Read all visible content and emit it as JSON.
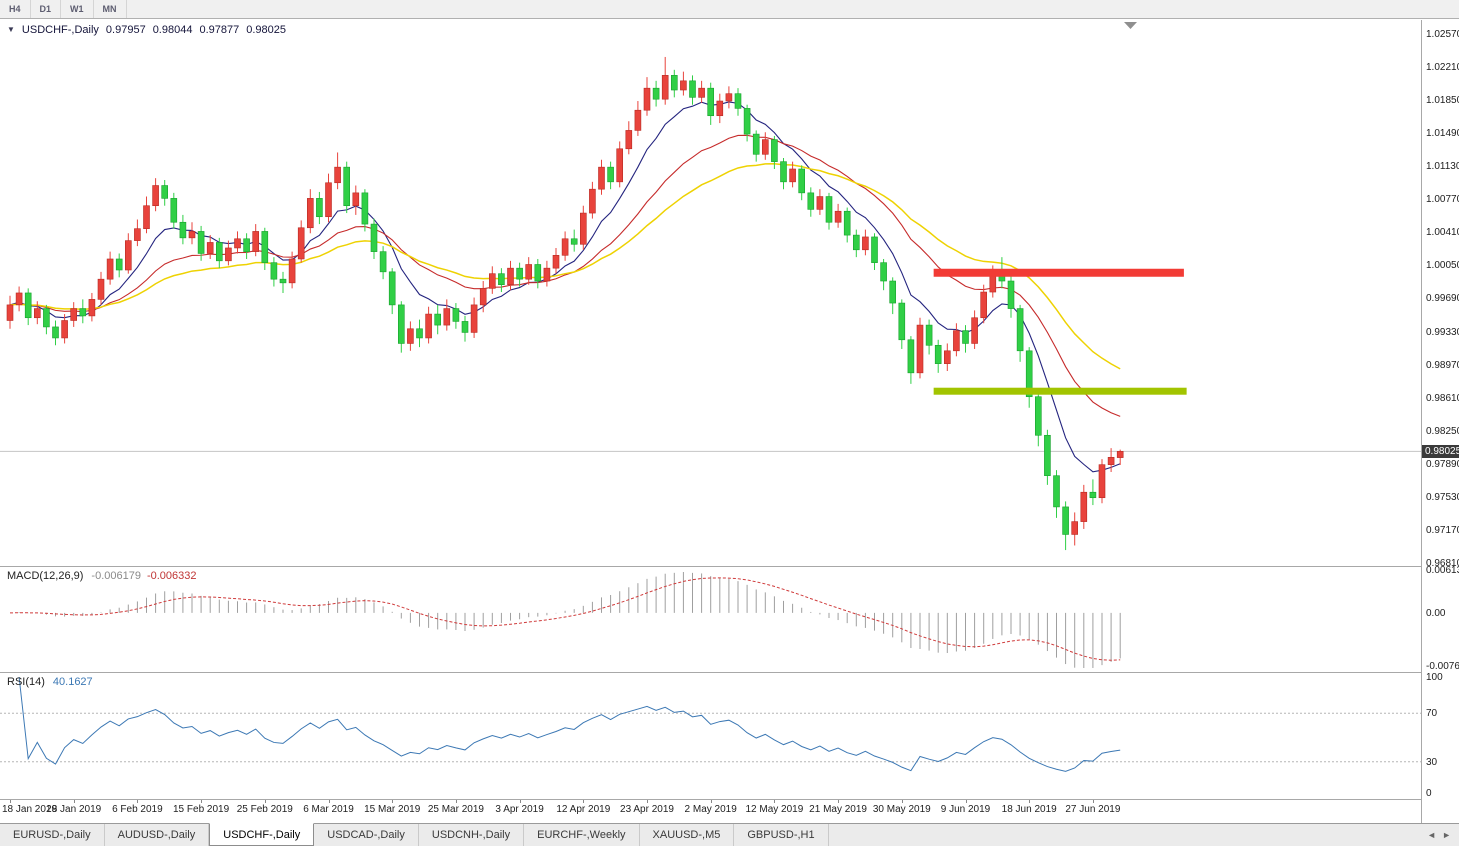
{
  "toolbar": {
    "timeframes": [
      "H4",
      "D1",
      "W1",
      "MN"
    ]
  },
  "chart_header": {
    "collapse_icon": "▼",
    "symbol": "USDCHF-,Daily",
    "open": "0.97957",
    "high": "0.98044",
    "low": "0.97877",
    "close": "0.98025"
  },
  "price_scale": {
    "labels": [
      "1.02570",
      "1.02210",
      "1.01850",
      "1.01490",
      "1.01130",
      "1.00770",
      "1.00410",
      "1.00050",
      "0.99690",
      "0.99330",
      "0.98970",
      "0.98610",
      "0.98250",
      "0.97890",
      "0.97530",
      "0.97170",
      "0.96810"
    ],
    "current_price": "0.98025"
  },
  "macd_panel": {
    "label": "MACD(12,26,9)",
    "main_value": "-0.006179",
    "signal_value": "-0.006332",
    "scale_labels": [
      "0.00613",
      "0.00",
      "-0.00761"
    ]
  },
  "rsi_panel": {
    "label": "RSI(14)",
    "value": "40.1627",
    "scale_labels": [
      "100",
      "70",
      "30",
      "0"
    ],
    "levels": [
      70,
      30
    ]
  },
  "time_axis": {
    "step": 7,
    "labels": [
      "18 Jan 2019",
      "28 Jan 2019",
      "6 Feb 2019",
      "15 Feb 2019",
      "25 Feb 2019",
      "6 Mar 2019",
      "15 Mar 2019",
      "25 Mar 2019",
      "3 Apr 2019",
      "12 Apr 2019",
      "23 Apr 2019",
      "2 May 2019",
      "12 May 2019",
      "21 May 2019",
      "30 May 2019",
      "9 Jun 2019",
      "18 Jun 2019",
      "27 Jun 2019"
    ]
  },
  "tab_bar": {
    "tabs": [
      {
        "label": "EURUSD-,Daily",
        "active": false
      },
      {
        "label": "AUDUSD-,Daily",
        "active": false
      },
      {
        "label": "USDCHF-,Daily",
        "active": true
      },
      {
        "label": "USDCAD-,Daily",
        "active": false
      },
      {
        "label": "USDCNH-,Daily",
        "active": false
      },
      {
        "label": "EURCHF-,Weekly",
        "active": false
      },
      {
        "label": "XAUUSD-,M5",
        "active": false
      },
      {
        "label": "GBPUSD-,H1",
        "active": false
      }
    ],
    "scroll_left": "◄",
    "scroll_right": "►"
  },
  "colors": {
    "bull": "#e8433c",
    "bear": "#30cf46",
    "bull_border": "#b72a22",
    "bear_border": "#17a12c",
    "ma_fast": "#24247f",
    "ma_mid": "#c62b2b",
    "ma_slow": "#eed202",
    "macd_hist": "#9f9f9f",
    "macd_signal": "#cf3a3a",
    "rsi_line": "#3c78b4",
    "resistance": "#f23b35",
    "support": "#a2c400",
    "price_line": "#c4c4c4",
    "badge_bg": "#3a3a3a"
  },
  "chart_data": {
    "type": "candlestick",
    "symbol": "USDCHF",
    "timeframe": "Daily",
    "title": "USDCHF-,Daily 0.97957 0.98044 0.97877 0.98025",
    "y_axis": {
      "min": 0.9681,
      "max": 1.0257,
      "tick": 0.0036
    },
    "x_labels": [
      "18 Jan 2019",
      "28 Jan 2019",
      "6 Feb 2019",
      "15 Feb 2019",
      "25 Feb 2019",
      "6 Mar 2019",
      "15 Mar 2019",
      "25 Mar 2019",
      "3 Apr 2019",
      "12 Apr 2019",
      "23 Apr 2019",
      "2 May 2019",
      "12 May 2019",
      "21 May 2019",
      "30 May 2019",
      "9 Jun 2019",
      "18 Jun 2019",
      "27 Jun 2019"
    ],
    "x_label_step": 7,
    "moving_averages": [
      {
        "name": "fast",
        "type": "EMA",
        "period": 8,
        "color_key": "ma_fast",
        "width": 1.1
      },
      {
        "name": "mid",
        "type": "EMA",
        "period": 20,
        "color_key": "ma_mid",
        "width": 1.1
      },
      {
        "name": "slow",
        "type": "EMA",
        "period": 34,
        "color_key": "ma_slow",
        "width": 1.5
      }
    ],
    "horizontal_levels": [
      {
        "name": "resistance",
        "price": 0.9997,
        "from_index": 101.5,
        "to_index": 129,
        "color_key": "resistance",
        "thickness": 8
      },
      {
        "name": "support",
        "price": 0.9868,
        "from_index": 101.5,
        "to_index": 129.3,
        "color_key": "support",
        "thickness": 7
      }
    ],
    "macd": {
      "fast": 12,
      "slow": 26,
      "signal": 9
    },
    "rsi": {
      "period": 14
    },
    "ohlc": [
      [
        0.9945,
        0.9972,
        0.9936,
        0.9962
      ],
      [
        0.9962,
        0.9982,
        0.9955,
        0.9975
      ],
      [
        0.9975,
        0.998,
        0.994,
        0.9948
      ],
      [
        0.9948,
        0.9966,
        0.9941,
        0.9958
      ],
      [
        0.9958,
        0.9962,
        0.993,
        0.9938
      ],
      [
        0.9938,
        0.9945,
        0.9918,
        0.9926
      ],
      [
        0.9926,
        0.9952,
        0.992,
        0.9945
      ],
      [
        0.9945,
        0.9965,
        0.9938,
        0.9958
      ],
      [
        0.9958,
        0.9968,
        0.9942,
        0.995
      ],
      [
        0.995,
        0.9975,
        0.9944,
        0.9968
      ],
      [
        0.9968,
        0.9998,
        0.9962,
        0.999
      ],
      [
        0.999,
        1.002,
        0.9984,
        1.0012
      ],
      [
        1.0012,
        1.0018,
        0.9992,
        1.0
      ],
      [
        1.0,
        1.004,
        0.9996,
        1.0032
      ],
      [
        1.0032,
        1.0055,
        1.0026,
        1.0045
      ],
      [
        1.0045,
        1.008,
        1.004,
        1.007
      ],
      [
        1.007,
        1.01,
        1.0064,
        1.0092
      ],
      [
        1.0092,
        1.0098,
        1.007,
        1.0078
      ],
      [
        1.0078,
        1.0084,
        1.0045,
        1.0052
      ],
      [
        1.0052,
        1.006,
        1.0028,
        1.0035
      ],
      [
        1.0035,
        1.0052,
        1.0028,
        1.0042
      ],
      [
        1.0042,
        1.0048,
        1.001,
        1.0018
      ],
      [
        1.0018,
        1.0038,
        1.0012,
        1.003
      ],
      [
        1.003,
        1.0035,
        1.0002,
        1.001
      ],
      [
        1.001,
        1.0032,
        1.0005,
        1.0024
      ],
      [
        1.0024,
        1.0042,
        1.0018,
        1.0034
      ],
      [
        1.0034,
        1.004,
        1.0012,
        1.002
      ],
      [
        1.002,
        1.005,
        1.0015,
        1.0042
      ],
      [
        1.0042,
        1.0046,
        1.0,
        1.0008
      ],
      [
        1.0008,
        1.0014,
        0.9982,
        0.999
      ],
      [
        0.999,
        0.9998,
        0.9975,
        0.9986
      ],
      [
        0.9986,
        1.002,
        0.998,
        1.0012
      ],
      [
        1.0012,
        1.0054,
        1.0008,
        1.0046
      ],
      [
        1.0046,
        1.0088,
        1.004,
        1.0078
      ],
      [
        1.0078,
        1.0085,
        1.005,
        1.0058
      ],
      [
        1.0058,
        1.0105,
        1.0052,
        1.0095
      ],
      [
        1.0095,
        1.0128,
        1.0088,
        1.0112
      ],
      [
        1.0112,
        1.0118,
        1.0062,
        1.007
      ],
      [
        1.007,
        1.0092,
        1.006,
        1.0084
      ],
      [
        1.0084,
        1.0088,
        1.0042,
        1.005
      ],
      [
        1.005,
        1.0056,
        1.0012,
        1.002
      ],
      [
        1.002,
        1.0026,
        0.999,
        0.9998
      ],
      [
        0.9998,
        1.0002,
        0.9952,
        0.9962
      ],
      [
        0.9962,
        0.9966,
        0.991,
        0.992
      ],
      [
        0.992,
        0.9944,
        0.9912,
        0.9936
      ],
      [
        0.9936,
        0.9946,
        0.9916,
        0.9926
      ],
      [
        0.9926,
        0.996,
        0.992,
        0.9952
      ],
      [
        0.9952,
        0.9962,
        0.993,
        0.994
      ],
      [
        0.994,
        0.9968,
        0.9934,
        0.9958
      ],
      [
        0.9958,
        0.9964,
        0.9936,
        0.9944
      ],
      [
        0.9944,
        0.995,
        0.9922,
        0.9932
      ],
      [
        0.9932,
        0.997,
        0.9926,
        0.9962
      ],
      [
        0.9962,
        0.9988,
        0.9954,
        0.998
      ],
      [
        0.998,
        1.0004,
        0.9974,
        0.9996
      ],
      [
        0.9996,
        1.0002,
        0.9976,
        0.9984
      ],
      [
        0.9984,
        1.001,
        0.9978,
        1.0002
      ],
      [
        1.0002,
        1.0008,
        0.9982,
        0.999
      ],
      [
        0.999,
        1.0014,
        0.9984,
        1.0006
      ],
      [
        1.0006,
        1.0012,
        0.998,
        0.9988
      ],
      [
        0.9988,
        1.001,
        0.9982,
        1.0002
      ],
      [
        1.0002,
        1.0024,
        0.9996,
        1.0016
      ],
      [
        1.0016,
        1.0042,
        1.001,
        1.0034
      ],
      [
        1.0034,
        1.0044,
        1.002,
        1.0028
      ],
      [
        1.0028,
        1.007,
        1.0022,
        1.0062
      ],
      [
        1.0062,
        1.0096,
        1.0056,
        1.0088
      ],
      [
        1.0088,
        1.012,
        1.0082,
        1.0112
      ],
      [
        1.0112,
        1.0118,
        1.0088,
        1.0096
      ],
      [
        1.0096,
        1.014,
        1.009,
        1.0132
      ],
      [
        1.0132,
        1.0162,
        1.0126,
        1.0152
      ],
      [
        1.0152,
        1.0184,
        1.0146,
        1.0174
      ],
      [
        1.0174,
        1.021,
        1.0168,
        1.0198
      ],
      [
        1.0198,
        1.0206,
        1.0178,
        1.0186
      ],
      [
        1.0186,
        1.0232,
        1.018,
        1.0212
      ],
      [
        1.0212,
        1.0218,
        1.0188,
        1.0196
      ],
      [
        1.0196,
        1.0216,
        1.019,
        1.0206
      ],
      [
        1.0206,
        1.0212,
        1.018,
        1.0188
      ],
      [
        1.0188,
        1.0206,
        1.0182,
        1.0198
      ],
      [
        1.0198,
        1.0204,
        1.0158,
        1.0168
      ],
      [
        1.0168,
        1.0192,
        1.016,
        1.0184
      ],
      [
        1.0184,
        1.02,
        1.0176,
        1.0192
      ],
      [
        1.0192,
        1.0198,
        1.0168,
        1.0176
      ],
      [
        1.0176,
        1.018,
        1.014,
        1.0148
      ],
      [
        1.0148,
        1.0152,
        1.0118,
        1.0126
      ],
      [
        1.0126,
        1.015,
        1.012,
        1.0142
      ],
      [
        1.0142,
        1.0146,
        1.011,
        1.0118
      ],
      [
        1.0118,
        1.0122,
        1.0088,
        1.0096
      ],
      [
        1.0096,
        1.0118,
        1.009,
        1.011
      ],
      [
        1.011,
        1.0114,
        1.0076,
        1.0084
      ],
      [
        1.0084,
        1.009,
        1.0058,
        1.0066
      ],
      [
        1.0066,
        1.0088,
        1.006,
        1.008
      ],
      [
        1.008,
        1.0084,
        1.0044,
        1.0052
      ],
      [
        1.0052,
        1.0072,
        1.0046,
        1.0064
      ],
      [
        1.0064,
        1.0068,
        1.003,
        1.0038
      ],
      [
        1.0038,
        1.0044,
        1.0014,
        1.0022
      ],
      [
        1.0022,
        1.0044,
        1.0016,
        1.0036
      ],
      [
        1.0036,
        1.004,
        1.0,
        1.0008
      ],
      [
        1.0008,
        1.0012,
        0.9978,
        0.9988
      ],
      [
        0.9988,
        0.9992,
        0.9952,
        0.9964
      ],
      [
        0.9964,
        0.9968,
        0.9914,
        0.9924
      ],
      [
        0.9924,
        0.9928,
        0.9876,
        0.9888
      ],
      [
        0.9888,
        0.9948,
        0.9882,
        0.994
      ],
      [
        0.994,
        0.9946,
        0.9908,
        0.9918
      ],
      [
        0.9918,
        0.9924,
        0.9888,
        0.9898
      ],
      [
        0.9898,
        0.992,
        0.989,
        0.9912
      ],
      [
        0.9912,
        0.9942,
        0.9906,
        0.9934
      ],
      [
        0.9934,
        0.994,
        0.991,
        0.992
      ],
      [
        0.992,
        0.9956,
        0.9914,
        0.9948
      ],
      [
        0.9948,
        0.9984,
        0.9942,
        0.9976
      ],
      [
        0.9976,
        1.0005,
        0.997,
        0.9996
      ],
      [
        0.9996,
        1.0014,
        0.998,
        0.9988
      ],
      [
        0.9988,
        0.9994,
        0.9948,
        0.9958
      ],
      [
        0.9958,
        0.9962,
        0.99,
        0.9912
      ],
      [
        0.9912,
        0.9916,
        0.985,
        0.9862
      ],
      [
        0.9862,
        0.9868,
        0.9808,
        0.982
      ],
      [
        0.982,
        0.9826,
        0.9766,
        0.9776
      ],
      [
        0.9776,
        0.9782,
        0.973,
        0.9742
      ],
      [
        0.9742,
        0.9748,
        0.9695,
        0.9712
      ],
      [
        0.9712,
        0.9736,
        0.97,
        0.9726
      ],
      [
        0.9726,
        0.9766,
        0.9718,
        0.9758
      ],
      [
        0.9758,
        0.9772,
        0.9744,
        0.9752
      ],
      [
        0.9752,
        0.9794,
        0.9746,
        0.9788
      ],
      [
        0.9788,
        0.9806,
        0.978,
        0.9796
      ],
      [
        0.97957,
        0.98044,
        0.97877,
        0.98025
      ]
    ]
  }
}
